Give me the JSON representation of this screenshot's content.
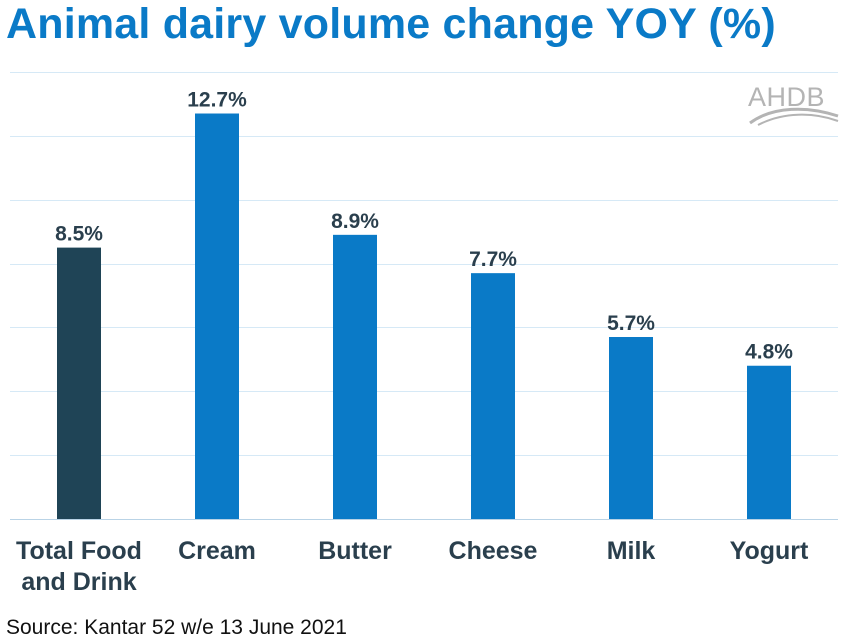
{
  "title": "Animal dairy volume change YOY (%)",
  "logo": {
    "text": "AHDB"
  },
  "source": "Source: Kantar 52 w/e 13 June 2021",
  "colors": {
    "title": "#0a7ac7",
    "highlight_bar": "#1f4456",
    "bar": "#0a7ac7",
    "label": "#2a3f4d",
    "gridline": "#d6e9f6"
  },
  "chart_data": {
    "type": "bar",
    "title": "Animal dairy volume change YOY (%)",
    "categories": [
      [
        "Total Food",
        "and Drink"
      ],
      [
        "Cream"
      ],
      [
        "Butter"
      ],
      [
        "Cheese"
      ],
      [
        "Milk"
      ],
      [
        "Yogurt"
      ]
    ],
    "values": [
      8.5,
      12.7,
      8.9,
      7.7,
      5.7,
      4.8
    ],
    "value_labels": [
      "8.5%",
      "12.7%",
      "8.9%",
      "7.7%",
      "5.7%",
      "4.8%"
    ],
    "highlight_index": 0,
    "unit": "%",
    "ylim": [
      0,
      14
    ],
    "grid": true,
    "legend": "none"
  }
}
